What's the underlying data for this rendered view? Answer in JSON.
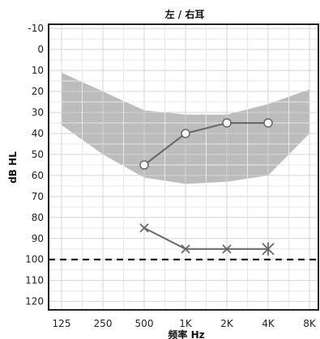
{
  "chart_data": {
    "type": "line",
    "title": "左 / 右耳",
    "xlabel": "频率 Hz",
    "ylabel": "dB HL",
    "x_ticks": [
      "125",
      "250",
      "500",
      "1K",
      "2K",
      "4K",
      "8K"
    ],
    "y_ticks": [
      -10,
      0,
      10,
      20,
      30,
      40,
      50,
      60,
      70,
      80,
      90,
      100,
      110,
      120
    ],
    "ylim": [
      -12,
      124
    ],
    "y_inverted": true,
    "grid": true,
    "speech_banana": {
      "upper": [
        {
          "x": "125",
          "y": 11
        },
        {
          "x": "250",
          "y": 20
        },
        {
          "x": "500",
          "y": 29
        },
        {
          "x": "1K",
          "y": 31
        },
        {
          "x": "2K",
          "y": 31
        },
        {
          "x": "4K",
          "y": 26
        },
        {
          "x": "8K",
          "y": 19
        }
      ],
      "lower": [
        {
          "x": "125",
          "y": 36
        },
        {
          "x": "250",
          "y": 50
        },
        {
          "x": "500",
          "y": 61
        },
        {
          "x": "1K",
          "y": 64
        },
        {
          "x": "2K",
          "y": 63
        },
        {
          "x": "4K",
          "y": 60
        },
        {
          "x": "8K",
          "y": 40
        }
      ],
      "color": "#b0b0b0"
    },
    "series": [
      {
        "marker": "circle",
        "color": "#666666",
        "points": [
          {
            "x": "500",
            "y": 55
          },
          {
            "x": "1K",
            "y": 40
          },
          {
            "x": "2K",
            "y": 35
          },
          {
            "x": "4K",
            "y": 35
          }
        ]
      },
      {
        "marker": "x",
        "color": "#666666",
        "points": [
          {
            "x": "500",
            "y": 85
          },
          {
            "x": "1K",
            "y": 95
          },
          {
            "x": "2K",
            "y": 95
          },
          {
            "x": "4K",
            "y": 95
          }
        ]
      }
    ],
    "reference_line": {
      "y": 100,
      "style": "dashed",
      "color": "#000000"
    }
  }
}
